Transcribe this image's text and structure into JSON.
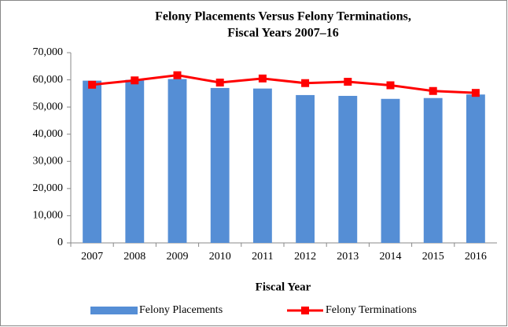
{
  "chart_data": {
    "type": "bar-line",
    "title": [
      "Felony Placements Versus Felony Terminations,",
      "Fiscal Years 2007–16"
    ],
    "x_label": "Fiscal Year",
    "categories": [
      "2007",
      "2008",
      "2009",
      "2010",
      "2011",
      "2012",
      "2013",
      "2014",
      "2015",
      "2016"
    ],
    "series": [
      {
        "name": "Felony Placements",
        "kind": "bar",
        "color": "#558ed5",
        "values": [
          59700,
          60000,
          60300,
          57000,
          56800,
          54400,
          54100,
          53000,
          53300,
          54600
        ]
      },
      {
        "name": "Felony Terminations",
        "kind": "line",
        "color": "#ff0000",
        "values": [
          58200,
          59800,
          61700,
          59000,
          60500,
          58800,
          59300,
          58000,
          55900,
          55200
        ]
      }
    ],
    "ylim": [
      0,
      70000
    ],
    "yticks": [
      0,
      {
        "value": 10000,
        "label": "10,000"
      },
      {
        "value": 20000,
        "label": "20,000"
      },
      {
        "value": 30000,
        "label": "30,000"
      },
      {
        "value": 40000,
        "label": "40,000"
      },
      {
        "value": 50000,
        "label": "50,000"
      },
      {
        "value": 60000,
        "label": "60,000"
      },
      {
        "value": 70000,
        "label": "70,000"
      }
    ],
    "grid": false,
    "legend": "bottom"
  }
}
